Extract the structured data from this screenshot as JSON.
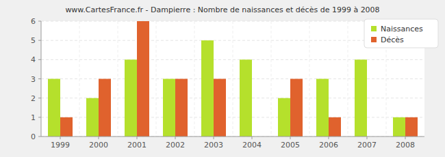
{
  "chart_data": {
    "type": "bar",
    "title": "www.CartesFrance.fr - Dampierre : Nombre de naissances et décès de 1999 à 2008",
    "categories": [
      "1999",
      "2000",
      "2001",
      "2002",
      "2003",
      "2004",
      "2005",
      "2006",
      "2007",
      "2008"
    ],
    "series": [
      {
        "name": "Naissances",
        "color": "#b5e02c",
        "values": [
          3,
          2,
          4,
          3,
          5,
          4,
          2,
          3,
          4,
          1
        ]
      },
      {
        "name": "Décès",
        "color": "#e0622d",
        "values": [
          1,
          3,
          6,
          3,
          3,
          0,
          3,
          1,
          0,
          1
        ]
      }
    ],
    "ylim": [
      0,
      6
    ],
    "yticks": [
      0,
      1,
      2,
      3,
      4,
      5,
      6
    ],
    "grid": true,
    "legend": "top-right"
  }
}
